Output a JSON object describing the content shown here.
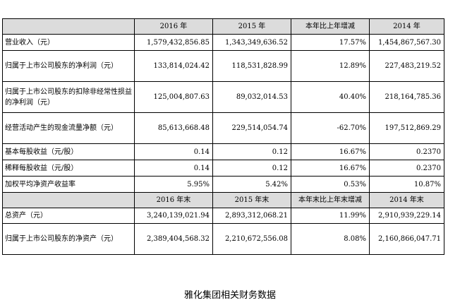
{
  "table": {
    "header1": [
      "",
      "2016 年",
      "2015 年",
      "本年比上年增减",
      "2014 年"
    ],
    "rows1": [
      [
        "营业收入（元）",
        "1,579,432,856.85",
        "1,343,349,636.52",
        "17.57%",
        "1,454,867,567.30"
      ],
      [
        "归属于上市公司股东的净利润（元）",
        "133,814,024.42",
        "118,531,828.99",
        "12.89%",
        "227,483,219.52"
      ],
      [
        "归属于上市公司股东的扣除非经常性损益的净利润（元）",
        "125,004,807.63",
        "89,032,014.53",
        "40.40%",
        "218,164,785.36"
      ],
      [
        "经营活动产生的现金流量净额（元）",
        "85,613,668.48",
        "229,514,054.74",
        "-62.70%",
        "197,512,869.29"
      ],
      [
        "基本每股收益（元/股）",
        "0.14",
        "0.12",
        "16.67%",
        "0.2370"
      ],
      [
        "稀释每股收益（元/股）",
        "0.14",
        "0.12",
        "16.67%",
        "0.2370"
      ],
      [
        "加权平均净资产收益率",
        "5.95%",
        "5.42%",
        "0.53%",
        "10.87%"
      ]
    ],
    "header2": [
      "",
      "2016 年末",
      "2015 年末",
      "本年末比上年末增减",
      "2014 年末"
    ],
    "rows2": [
      [
        "总资产（元）",
        "3,240,139,021.94",
        "2,893,312,068.21",
        "11.99%",
        "2,910,939,229.14"
      ],
      [
        "归属于上市公司股东的净资产（元）",
        "2,389,404,568.32",
        "2,210,672,556.08",
        "8.08%",
        "2,160,866,047.71"
      ]
    ]
  },
  "caption": "雅化集团相关财务数据",
  "colors": {
    "header_bg": "#dcdcdc",
    "border": "#000000"
  }
}
